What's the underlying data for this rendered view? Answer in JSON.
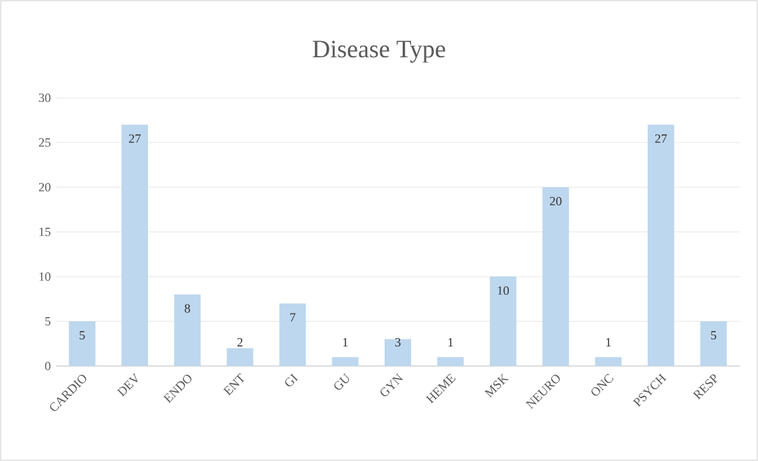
{
  "chart_data": {
    "type": "bar",
    "title": "Disease Type",
    "categories": [
      "CARDIO",
      "DEV",
      "ENDO",
      "ENT",
      "GI",
      "GU",
      "GYN",
      "HEME",
      "MSK",
      "NEURO",
      "ONC",
      "PSYCH",
      "RESP"
    ],
    "values": [
      5,
      27,
      8,
      2,
      7,
      1,
      3,
      1,
      10,
      20,
      1,
      27,
      5
    ],
    "color": "#bdd7ee",
    "ylim": [
      0,
      30
    ],
    "yticks": [
      0,
      5,
      10,
      15,
      20,
      25,
      30
    ],
    "grid": "y",
    "data_labels": true
  }
}
